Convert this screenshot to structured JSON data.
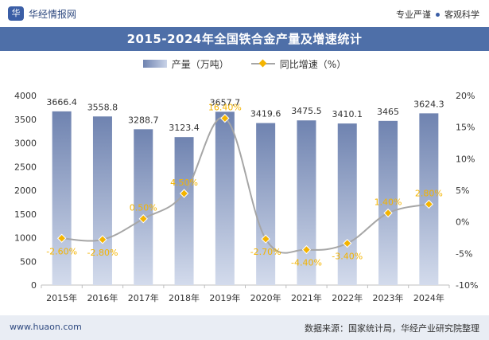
{
  "header": {
    "logo_glyph": "华",
    "brand_name": "华经情报网",
    "tagline_left": "专业严谨",
    "tagline_right": "客观科学"
  },
  "legend": {
    "bar_label": "产量（万吨）",
    "line_label": "同比增速（%）"
  },
  "footer": {
    "url": "www.huaon.com",
    "source": "数据来源：国家统计局，华经产业研究院整理"
  },
  "colors": {
    "title_bar": "#4e6fa8",
    "bar_top": "#6f83b0",
    "bar_bottom": "#d3dbec",
    "line": "#a6a6a6",
    "marker": "#f4b400",
    "growth_label": "#f4b400"
  },
  "chart_data": {
    "type": "bar+line",
    "title": "2015-2024年全国铁合金产量及增速统计",
    "categories": [
      "2015年",
      "2016年",
      "2017年",
      "2018年",
      "2019年",
      "2020年",
      "2021年",
      "2022年",
      "2023年",
      "2024年"
    ],
    "series": [
      {
        "name": "产量（万吨）",
        "type": "bar",
        "axis": "left",
        "values": [
          3666.4,
          3558.8,
          3288.7,
          3123.4,
          3657.7,
          3419.6,
          3475.5,
          3410.1,
          3465,
          3624.3
        ],
        "labels": [
          "3666.4",
          "3558.8",
          "3288.7",
          "3123.4",
          "3657.7",
          "3419.6",
          "3475.5",
          "3410.1",
          "3465",
          "3624.3"
        ]
      },
      {
        "name": "同比增速（%）",
        "type": "line",
        "axis": "right",
        "values": [
          -2.6,
          -2.8,
          0.5,
          4.5,
          16.4,
          -2.7,
          -4.4,
          -3.4,
          1.4,
          2.8
        ],
        "labels": [
          "-2.60%",
          "-2.80%",
          "0.50%",
          "4.50%",
          "16.40%",
          "-2.70%",
          "-4.40%",
          "-3.40%",
          "1.40%",
          "2.80%"
        ]
      }
    ],
    "y_left": {
      "min": 0,
      "max": 4000,
      "step": 500,
      "ticks": [
        "0",
        "500",
        "1000",
        "1500",
        "2000",
        "2500",
        "3000",
        "3500",
        "4000"
      ]
    },
    "y_right": {
      "min": -10,
      "max": 20,
      "step": 5,
      "ticks": [
        "-10%",
        "-5%",
        "0%",
        "5%",
        "10%",
        "15%",
        "20%"
      ]
    },
    "grid": false,
    "legend_position": "top-center"
  }
}
